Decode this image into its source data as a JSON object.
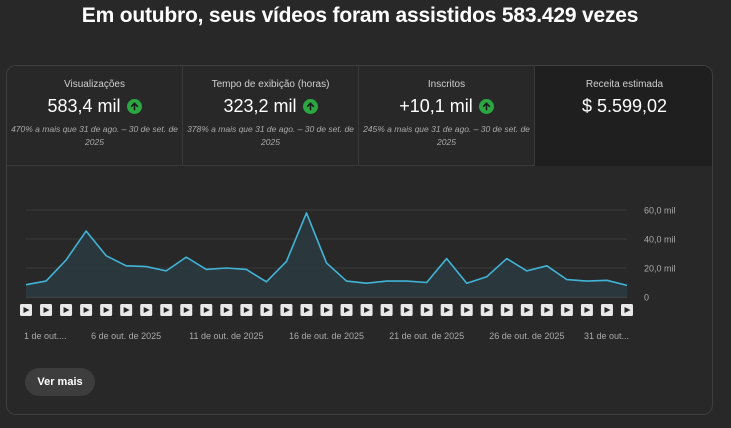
{
  "headline": "Em outubro, seus vídeos foram assistidos 583.429 vezes",
  "metrics": [
    {
      "label": "Visualizações",
      "value": "583,4 mil",
      "trend": "up",
      "sub": "470% a mais que 31 de ago. – 30 de set. de 2025"
    },
    {
      "label": "Tempo de exibição (horas)",
      "value": "323,2 mil",
      "trend": "up",
      "sub": "378% a mais que 31 de ago. – 30 de set. de 2025"
    },
    {
      "label": "Inscritos",
      "value": "+10,1 mil",
      "trend": "up",
      "sub": "245% a mais que 31 de ago. – 30 de set. de 2025"
    },
    {
      "label": "Receita estimada",
      "value": "$ 5.599,02",
      "trend": "",
      "sub": ""
    }
  ],
  "chart_data": {
    "type": "area",
    "x": [
      1,
      2,
      3,
      4,
      5,
      6,
      7,
      8,
      9,
      10,
      11,
      12,
      13,
      14,
      15,
      16,
      17,
      18,
      19,
      20,
      21,
      22,
      23,
      24,
      25,
      26,
      27,
      28,
      29,
      30,
      31
    ],
    "values": [
      8.5,
      11,
      25.5,
      45.5,
      28.5,
      21.5,
      21,
      18,
      27.5,
      19,
      20,
      19,
      10.5,
      24.5,
      58,
      23.5,
      11,
      9.5,
      11,
      11,
      10,
      26.5,
      9.5,
      14,
      26.5,
      18,
      21.5,
      12,
      11,
      11.5,
      8
    ],
    "ylim": [
      0,
      60
    ],
    "yticks": [
      "60,0 mil",
      "40,0 mil",
      "20,0 mil",
      "0"
    ],
    "ytick_values": [
      60,
      40,
      20,
      0
    ],
    "xticks": [
      {
        "day": 1,
        "label": "1 de out...."
      },
      {
        "day": 6,
        "label": "6 de out. de 2025"
      },
      {
        "day": 11,
        "label": "11 de out. de 2025"
      },
      {
        "day": 16,
        "label": "16 de out. de 2025"
      },
      {
        "day": 21,
        "label": "21 de out. de 2025"
      },
      {
        "day": 26,
        "label": "26 de out. de 2025"
      },
      {
        "day": 31,
        "label": "31 de out..."
      }
    ],
    "line_color": "#41b4d8",
    "fill_color": "#2a3b42",
    "grid": true
  },
  "see_more_label": "Ver mais"
}
